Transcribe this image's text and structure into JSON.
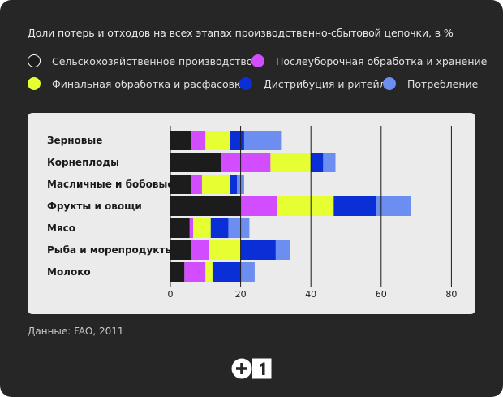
{
  "title": "Доли потерь и отходов на всех этапах производственно-сбытовой цепочки, в %",
  "source": "Данные: FAO, 2011",
  "legend": [
    {
      "label": "Сельскохозяйственное производство",
      "color": "#1c1c1c",
      "outline": true
    },
    {
      "label": "Послеуборочная обработка и хранение",
      "color": "#d24dff",
      "outline": false
    },
    {
      "label": "Финальная обработка и расфасовка",
      "color": "#e5ff33",
      "outline": false
    },
    {
      "label": "Дистрибуция и ритейл",
      "color": "#0a2fd6",
      "outline": false
    },
    {
      "label": "Потребление",
      "color": "#6b8ef0",
      "outline": false
    }
  ],
  "chart_data": {
    "type": "bar",
    "orientation": "horizontal",
    "stacked": true,
    "categories": [
      "Зерновые",
      "Корнеплоды",
      "Масличные и бобовые",
      "Фрукты и овощи",
      "Мясо",
      "Рыба и морепродукты",
      "Молоко"
    ],
    "series": [
      {
        "name": "Сельскохозяйственное производство",
        "color": "#1c1c1c",
        "values": [
          6,
          14.5,
          6,
          20,
          5.5,
          6,
          4
        ]
      },
      {
        "name": "Послеуборочная обработка и хранение",
        "color": "#d24dff",
        "values": [
          4,
          14,
          3,
          10.5,
          1,
          5,
          6
        ]
      },
      {
        "name": "Финальная обработка и расфасовка",
        "color": "#e5ff33",
        "values": [
          7,
          11.5,
          8,
          16,
          5,
          9,
          2
        ]
      },
      {
        "name": "Дистрибуция и ритейл",
        "color": "#0a2fd6",
        "values": [
          4,
          3.5,
          2,
          12,
          5,
          10,
          8
        ]
      },
      {
        "name": "Потребление",
        "color": "#6b8ef0",
        "values": [
          10.5,
          3.5,
          2,
          10,
          6,
          4,
          4
        ]
      }
    ],
    "xlim": [
      0,
      80
    ],
    "xticks": [
      0,
      20,
      40,
      60,
      80
    ],
    "grid": "vertical"
  }
}
